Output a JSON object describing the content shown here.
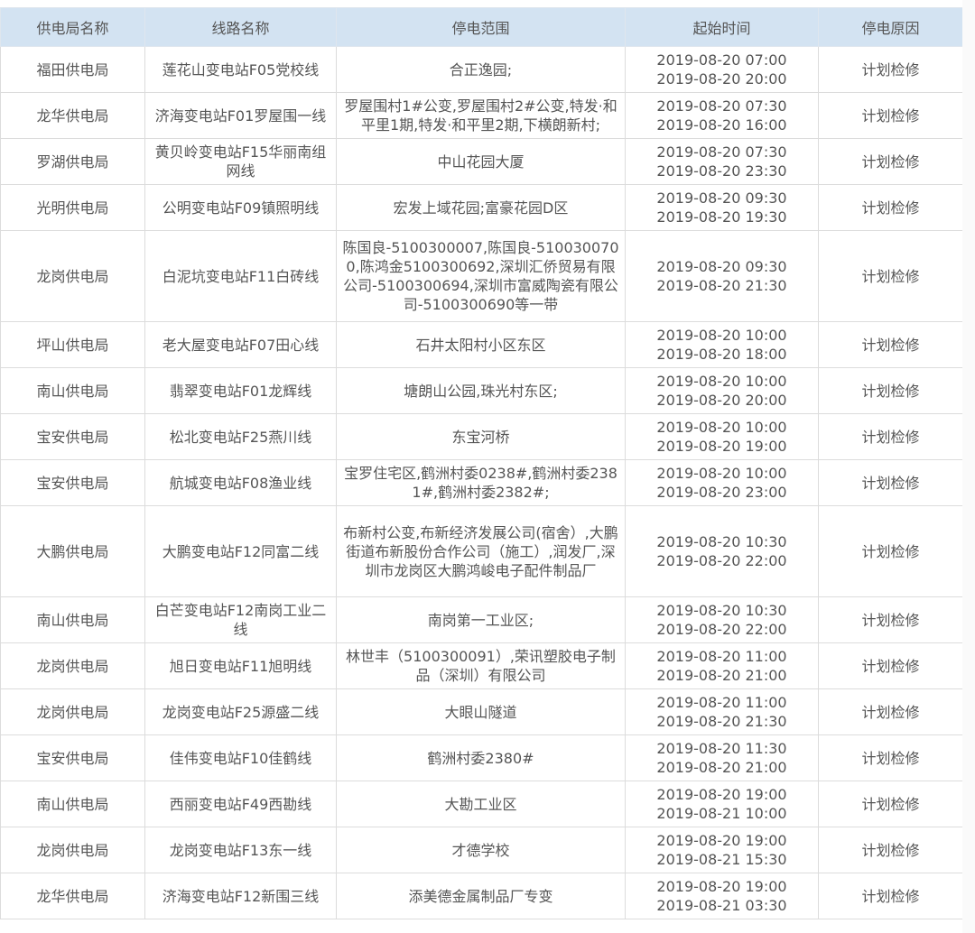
{
  "headers": [
    "供电局名称",
    "线路名称",
    "停电范围",
    "起始时间",
    "停电原因"
  ],
  "rows": [
    {
      "bureau": "福田供电局",
      "line": "莲花山变电站F05党校线",
      "scope": "合正逸园;",
      "start": "2019-08-20 07:00",
      "end": "2019-08-20 20:00",
      "reason": "计划检修"
    },
    {
      "bureau": "龙华供电局",
      "line": "济海变电站F01罗屋围一线",
      "scope": "罗屋围村1#公变,罗屋围村2#公变,特发·和平里1期,特发·和平里2期,下横朗新村;",
      "start": "2019-08-20 07:30",
      "end": "2019-08-20 16:00",
      "reason": "计划检修"
    },
    {
      "bureau": "罗湖供电局",
      "line": "黄贝岭变电站F15华丽南组网线",
      "scope": "中山花园大厦",
      "start": "2019-08-20 07:30",
      "end": "2019-08-20 23:30",
      "reason": "计划检修"
    },
    {
      "bureau": "光明供电局",
      "line": "公明变电站F09镇照明线",
      "scope": "宏发上域花园;富豪花园D区",
      "start": "2019-08-20 09:30",
      "end": "2019-08-20 19:30",
      "reason": "计划检修"
    },
    {
      "bureau": "龙岗供电局",
      "line": "白泥坑变电站F11白砖线",
      "scope": "陈国良-5100300007,陈国良-5100300700,陈鸿金5100300692,深圳汇侨贸易有限公司-5100300694,深圳市富威陶瓷有限公司-5100300690等一带",
      "start": "2019-08-20 09:30",
      "end": "2019-08-20 21:30",
      "reason": "计划检修",
      "tall": true
    },
    {
      "bureau": "坪山供电局",
      "line": "老大屋变电站F07田心线",
      "scope": "石井太阳村小区东区",
      "start": "2019-08-20 10:00",
      "end": "2019-08-20 18:00",
      "reason": "计划检修"
    },
    {
      "bureau": "南山供电局",
      "line": "翡翠变电站F01龙辉线",
      "scope": "塘朗山公园,珠光村东区;",
      "start": "2019-08-20 10:00",
      "end": "2019-08-20 20:00",
      "reason": "计划检修"
    },
    {
      "bureau": "宝安供电局",
      "line": "松北变电站F25燕川线",
      "scope": "东宝河桥",
      "start": "2019-08-20 10:00",
      "end": "2019-08-20 19:00",
      "reason": "计划检修"
    },
    {
      "bureau": "宝安供电局",
      "line": "航城变电站F08渔业线",
      "scope": "宝罗住宅区,鹤洲村委0238#,鹤洲村委2381#,鹤洲村委2382#;",
      "start": "2019-08-20 10:00",
      "end": "2019-08-20 23:00",
      "reason": "计划检修"
    },
    {
      "bureau": "大鹏供电局",
      "line": "大鹏变电站F12同富二线",
      "scope": "布新村公变,布新经济发展公司(宿舍）,大鹏街道布新股份合作公司（施工）,润发厂,深圳市龙岗区大鹏鸿峻电子配件制品厂",
      "start": "2019-08-20 10:30",
      "end": "2019-08-20 22:00",
      "reason": "计划检修",
      "tall": true
    },
    {
      "bureau": "南山供电局",
      "line": "白芒变电站F12南岗工业二线",
      "scope": "南岗第一工业区;",
      "start": "2019-08-20 10:30",
      "end": "2019-08-20 22:00",
      "reason": "计划检修"
    },
    {
      "bureau": "龙岗供电局",
      "line": "旭日变电站F11旭明线",
      "scope": "林世丰（5100300091）,荣讯塑胶电子制品（深圳）有限公司",
      "start": "2019-08-20 11:00",
      "end": "2019-08-20 21:00",
      "reason": "计划检修"
    },
    {
      "bureau": "龙岗供电局",
      "line": "龙岗变电站F25源盛二线",
      "scope": "大眼山隧道",
      "start": "2019-08-20 11:00",
      "end": "2019-08-20 21:30",
      "reason": "计划检修"
    },
    {
      "bureau": "宝安供电局",
      "line": "佳伟变电站F10佳鹤线",
      "scope": "鹤洲村委2380#",
      "start": "2019-08-20 11:30",
      "end": "2019-08-20 21:00",
      "reason": "计划检修"
    },
    {
      "bureau": "南山供电局",
      "line": "西丽变电站F49西勘线",
      "scope": "大勘工业区",
      "start": "2019-08-20 19:00",
      "end": "2019-08-21 10:00",
      "reason": "计划检修"
    },
    {
      "bureau": "龙岗供电局",
      "line": "龙岗变电站F13东一线",
      "scope": "才德学校",
      "start": "2019-08-20 19:00",
      "end": "2019-08-21 15:30",
      "reason": "计划检修"
    },
    {
      "bureau": "龙华供电局",
      "line": "济海变电站F12新围三线",
      "scope": "添美德金属制品厂专变",
      "start": "2019-08-20 19:00",
      "end": "2019-08-21 03:30",
      "reason": "计划检修"
    }
  ]
}
